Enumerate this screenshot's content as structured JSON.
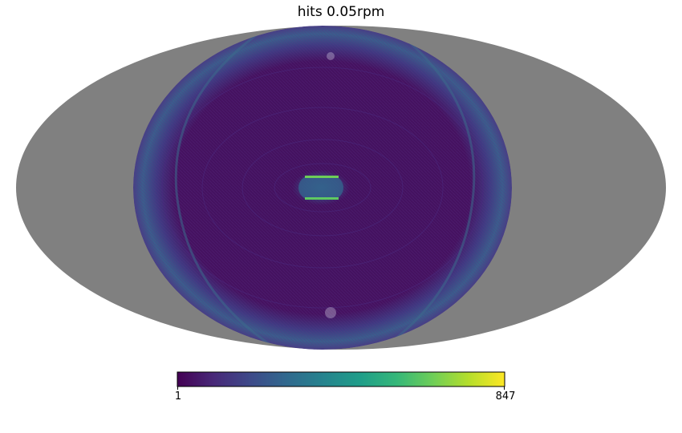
{
  "chart_data": {
    "type": "heatmap",
    "projection": "mollweide",
    "title": "hits 0.05rpm",
    "colormap": "viridis",
    "colorbar": {
      "min": 1,
      "max": 847,
      "min_label": "1",
      "max_label": "847",
      "orientation": "horizontal",
      "placement": "bottom"
    },
    "unobserved_color": "#808080",
    "background_level": 60,
    "features": [
      {
        "name": "central-hotspot-upper-stripe",
        "value": 700
      },
      {
        "name": "central-hotspot-lower-stripe",
        "value": 640
      },
      {
        "name": "outer-ring",
        "value": 250
      }
    ]
  },
  "colors": {
    "viridis": [
      "#440154",
      "#482878",
      "#3e4989",
      "#31688e",
      "#26828e",
      "#1f9e89",
      "#35b779",
      "#6ece58",
      "#b5de2b",
      "#fde725"
    ],
    "masked": "#808080",
    "background": "#ffffff"
  }
}
